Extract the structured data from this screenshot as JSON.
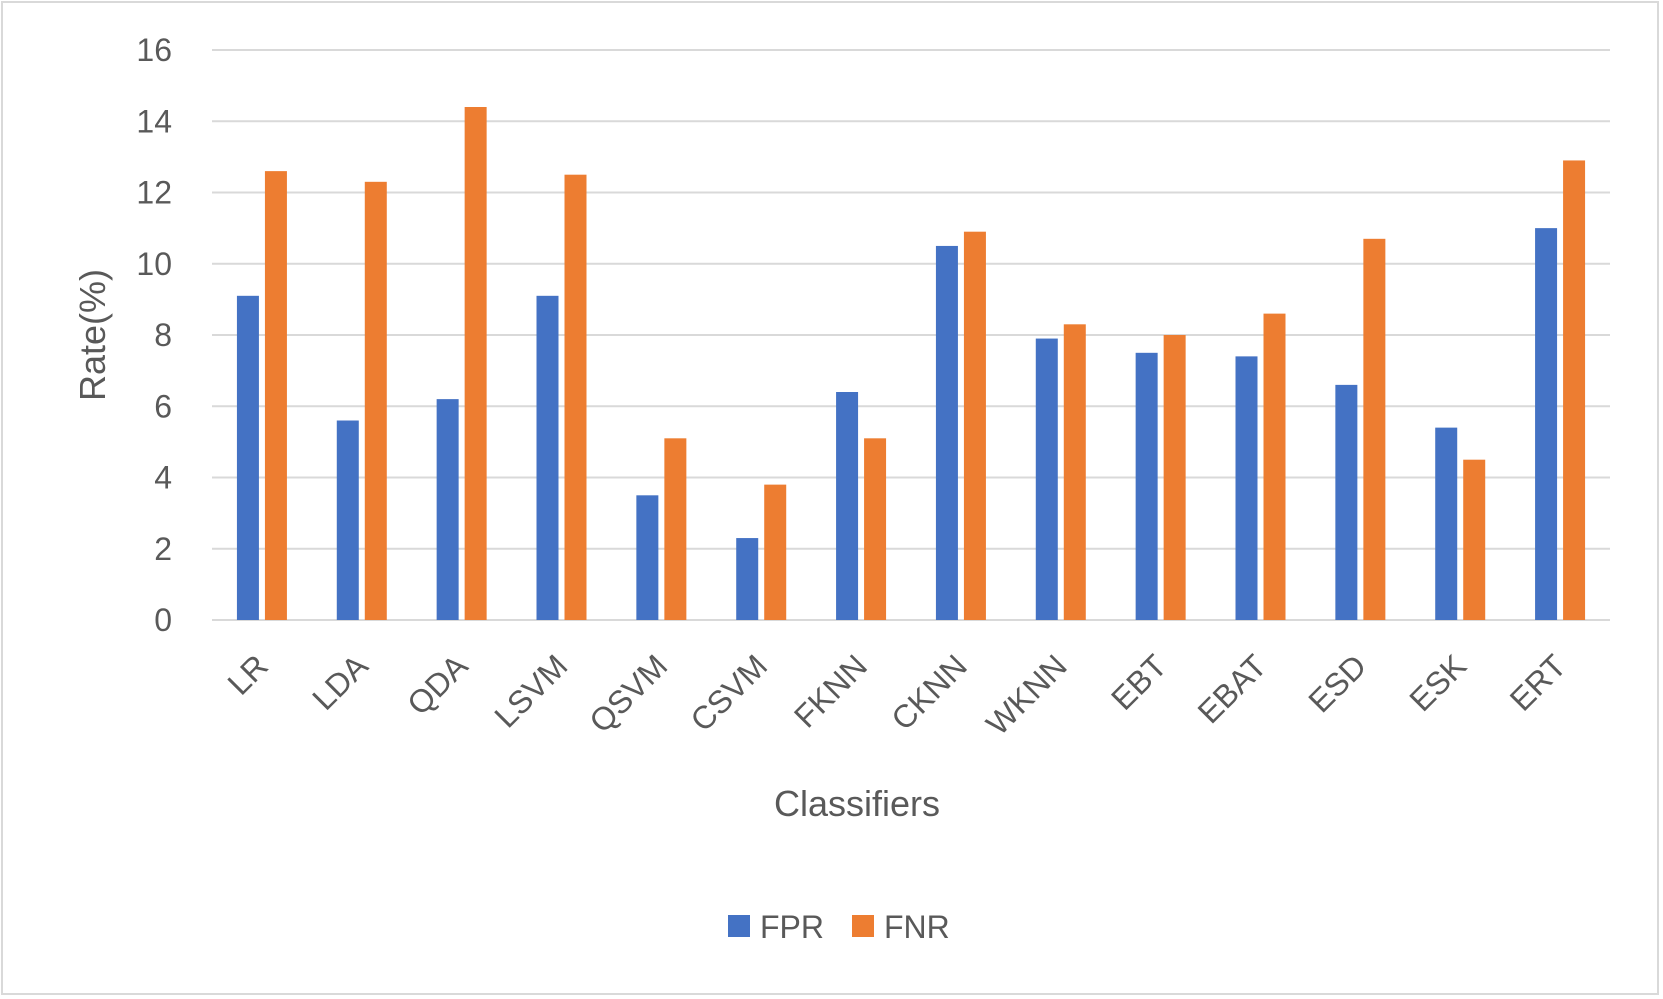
{
  "chart_data": {
    "type": "bar",
    "title": "",
    "xlabel": "Classifiers",
    "ylabel": "Rate(%)",
    "ylim": [
      0,
      16
    ],
    "yticks": [
      0,
      2,
      4,
      6,
      8,
      10,
      12,
      14,
      16
    ],
    "grid": true,
    "legend_position": "bottom",
    "categories": [
      "LR",
      "LDA",
      "QDA",
      "LSVM",
      "QSVM",
      "CSVM",
      "FKNN",
      "CKNN",
      "WKNN",
      "EBT",
      "EBAT",
      "ESD",
      "ESK",
      "ERT"
    ],
    "series": [
      {
        "name": "FPR",
        "color": "#4472c4",
        "values": [
          9.1,
          5.6,
          6.2,
          9.1,
          3.5,
          2.3,
          6.4,
          10.5,
          7.9,
          7.5,
          7.4,
          6.6,
          5.4,
          11.0
        ]
      },
      {
        "name": "FNR",
        "color": "#ed7d31",
        "values": [
          12.6,
          12.3,
          14.4,
          12.5,
          5.1,
          3.8,
          5.1,
          10.9,
          8.3,
          8.0,
          8.6,
          10.7,
          4.5,
          12.9
        ]
      }
    ]
  }
}
